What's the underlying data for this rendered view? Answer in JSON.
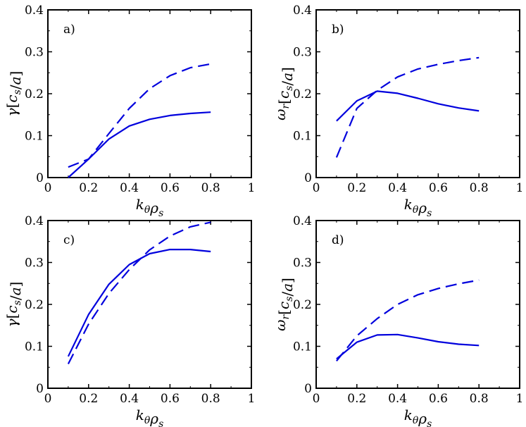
{
  "chart_data": [
    {
      "type": "line",
      "panel_label": "a)",
      "xlabel": "kθρs",
      "ylabel": "γ[cs/a]",
      "xlim": [
        0,
        1
      ],
      "ylim": [
        0,
        0.4
      ],
      "xticks": [
        "0",
        "0.2",
        "0.4",
        "0.6",
        "0.8",
        "1"
      ],
      "yticks": [
        "0",
        "0.1",
        "0.2",
        "0.3",
        "0.4"
      ],
      "grid": false,
      "series": [
        {
          "style": "solid",
          "color": "#0000dd",
          "x": [
            0.1,
            0.2,
            0.3,
            0.4,
            0.5,
            0.6,
            0.7,
            0.8
          ],
          "y": [
            0.0,
            0.044,
            0.092,
            0.123,
            0.139,
            0.148,
            0.153,
            0.156
          ]
        },
        {
          "style": "dashed",
          "color": "#0000dd",
          "x": [
            0.1,
            0.2,
            0.3,
            0.4,
            0.5,
            0.6,
            0.7,
            0.8
          ],
          "y": [
            0.025,
            0.044,
            0.105,
            0.165,
            0.212,
            0.243,
            0.262,
            0.271
          ]
        }
      ]
    },
    {
      "type": "line",
      "panel_label": "b)",
      "xlabel": "kθρs",
      "ylabel": "ωr[cs/a]",
      "xlim": [
        0,
        1
      ],
      "ylim": [
        0,
        0.4
      ],
      "xticks": [
        "0",
        "0.2",
        "0.4",
        "0.6",
        "0.8",
        "1"
      ],
      "yticks": [
        "0",
        "0.1",
        "0.2",
        "0.3",
        "0.4"
      ],
      "grid": false,
      "series": [
        {
          "style": "solid",
          "color": "#0000dd",
          "x": [
            0.1,
            0.2,
            0.3,
            0.4,
            0.5,
            0.6,
            0.7,
            0.8
          ],
          "y": [
            0.135,
            0.183,
            0.206,
            0.201,
            0.189,
            0.176,
            0.166,
            0.159
          ]
        },
        {
          "style": "dashed",
          "color": "#0000dd",
          "x": [
            0.1,
            0.2,
            0.3,
            0.4,
            0.5,
            0.6,
            0.7,
            0.8
          ],
          "y": [
            0.048,
            0.165,
            0.208,
            0.24,
            0.259,
            0.27,
            0.279,
            0.286
          ]
        }
      ]
    },
    {
      "type": "line",
      "panel_label": "c)",
      "xlabel": "kθρs",
      "ylabel": "γ[cs/a]",
      "xlim": [
        0,
        1
      ],
      "ylim": [
        0,
        0.4
      ],
      "xticks": [
        "0",
        "0.2",
        "0.4",
        "0.6",
        "0.8",
        "1"
      ],
      "yticks": [
        "0",
        "0.1",
        "0.2",
        "0.3",
        "0.4"
      ],
      "grid": false,
      "series": [
        {
          "style": "solid",
          "color": "#0000dd",
          "x": [
            0.1,
            0.2,
            0.3,
            0.4,
            0.5,
            0.6,
            0.7,
            0.8
          ],
          "y": [
            0.076,
            0.176,
            0.248,
            0.295,
            0.321,
            0.331,
            0.331,
            0.326
          ]
        },
        {
          "style": "dashed",
          "color": "#0000dd",
          "x": [
            0.1,
            0.2,
            0.3,
            0.4,
            0.5,
            0.6,
            0.7,
            0.8
          ],
          "y": [
            0.058,
            0.153,
            0.226,
            0.283,
            0.33,
            0.363,
            0.385,
            0.396
          ]
        }
      ]
    },
    {
      "type": "line",
      "panel_label": "d)",
      "xlabel": "kθρs",
      "ylabel": "ωr[cs/a]",
      "xlim": [
        0,
        1
      ],
      "ylim": [
        0,
        0.4
      ],
      "xticks": [
        "0",
        "0.2",
        "0.4",
        "0.6",
        "0.8",
        "1"
      ],
      "yticks": [
        "0",
        "0.1",
        "0.2",
        "0.3",
        "0.4"
      ],
      "grid": false,
      "series": [
        {
          "style": "solid",
          "color": "#0000dd",
          "x": [
            0.1,
            0.2,
            0.3,
            0.4,
            0.5,
            0.6,
            0.7,
            0.8
          ],
          "y": [
            0.07,
            0.11,
            0.127,
            0.128,
            0.12,
            0.111,
            0.105,
            0.102
          ]
        },
        {
          "style": "dashed",
          "color": "#0000dd",
          "x": [
            0.1,
            0.2,
            0.3,
            0.4,
            0.5,
            0.6,
            0.7,
            0.8
          ],
          "y": [
            0.065,
            0.125,
            0.166,
            0.2,
            0.223,
            0.238,
            0.249,
            0.258
          ]
        }
      ]
    }
  ]
}
